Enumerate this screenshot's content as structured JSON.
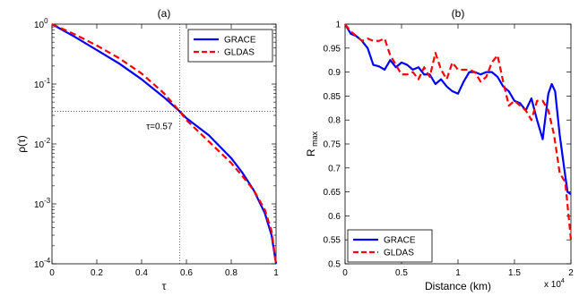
{
  "chart_data": [
    {
      "type": "line",
      "title": "(a)",
      "xlabel": "τ",
      "ylabel": "ρ(τ)",
      "xlim": [
        0,
        1
      ],
      "ylim": [
        0.0001,
        1
      ],
      "y_scale": "log",
      "xticks": [
        "0",
        "0.2",
        "0.4",
        "0.6",
        "0.8",
        "1"
      ],
      "yticks": [
        {
          "base": "10",
          "exp": "0"
        },
        {
          "base": "10",
          "exp": "-1"
        },
        {
          "base": "10",
          "exp": "-2"
        },
        {
          "base": "10",
          "exp": "-3"
        },
        {
          "base": "10",
          "exp": "-4"
        }
      ],
      "legend_position": "top-right",
      "annotation": "τ=0.57",
      "reference_lines": {
        "x": 0.57,
        "y": 0.035
      },
      "series": [
        {
          "name": "GRACE",
          "color": "#0000ff",
          "style": "solid",
          "x": [
            0,
            0.1,
            0.2,
            0.3,
            0.4,
            0.5,
            0.57,
            0.6,
            0.7,
            0.8,
            0.85,
            0.9,
            0.95,
            0.98,
            1.0
          ],
          "y": [
            1.0,
            0.62,
            0.37,
            0.22,
            0.12,
            0.06,
            0.035,
            0.027,
            0.014,
            0.0058,
            0.0033,
            0.0017,
            0.0007,
            0.0003,
            0.0001
          ]
        },
        {
          "name": "GLDAS",
          "color": "#ff0000",
          "style": "dashed",
          "x": [
            0,
            0.1,
            0.2,
            0.3,
            0.4,
            0.5,
            0.57,
            0.6,
            0.7,
            0.8,
            0.85,
            0.9,
            0.95,
            0.98,
            1.0
          ],
          "y": [
            1.0,
            0.68,
            0.44,
            0.27,
            0.15,
            0.07,
            0.035,
            0.025,
            0.011,
            0.0048,
            0.0029,
            0.0017,
            0.0008,
            0.00035,
            0.0001
          ]
        }
      ]
    },
    {
      "type": "line",
      "title": "(b)",
      "xlabel": "Distance (km)",
      "ylabel": "R",
      "ylabel_sub": "max",
      "xlim": [
        0,
        20000
      ],
      "ylim": [
        0.5,
        1
      ],
      "xticks": [
        "0",
        "0.5",
        "1",
        "1.5",
        "2"
      ],
      "yticks": [
        "1",
        "0.95",
        "0.9",
        "0.85",
        "0.8",
        "0.75",
        "0.7",
        "0.65",
        "0.6",
        "0.55",
        "0.5"
      ],
      "x_multiplier": {
        "base": "x 10",
        "exp": "4"
      },
      "legend_position": "bottom-left",
      "series": [
        {
          "name": "GRACE",
          "color": "#0000ff",
          "style": "solid",
          "x": [
            0,
            500,
            1000,
            1500,
            2000,
            2500,
            3000,
            3500,
            4000,
            4500,
            5000,
            5500,
            6000,
            6500,
            7000,
            7500,
            8000,
            8500,
            9000,
            9500,
            10000,
            10500,
            11000,
            11500,
            12000,
            12500,
            13000,
            13500,
            14000,
            14500,
            15000,
            15500,
            16000,
            16500,
            17000,
            17500,
            18000,
            18300,
            18600,
            19000,
            19400,
            19700,
            20000
          ],
          "y": [
            1.0,
            0.98,
            0.975,
            0.965,
            0.95,
            0.915,
            0.912,
            0.905,
            0.925,
            0.91,
            0.92,
            0.915,
            0.905,
            0.91,
            0.895,
            0.895,
            0.875,
            0.885,
            0.87,
            0.86,
            0.855,
            0.88,
            0.9,
            0.9,
            0.895,
            0.9,
            0.9,
            0.89,
            0.87,
            0.86,
            0.84,
            0.835,
            0.82,
            0.845,
            0.8,
            0.76,
            0.855,
            0.875,
            0.86,
            0.77,
            0.7,
            0.65,
            0.645
          ]
        },
        {
          "name": "GLDAS",
          "color": "#ff0000",
          "style": "dashed",
          "x": [
            0,
            500,
            1000,
            1500,
            2000,
            2500,
            3000,
            3500,
            4000,
            4500,
            5000,
            5500,
            6000,
            6500,
            7000,
            7500,
            8000,
            8500,
            9000,
            9500,
            10000,
            10500,
            11000,
            11500,
            12000,
            12500,
            13000,
            13500,
            14000,
            14500,
            15000,
            15500,
            16000,
            16500,
            17000,
            17500,
            18000,
            18500,
            19000,
            19500,
            20000
          ],
          "y": [
            1.0,
            0.985,
            0.975,
            0.965,
            0.97,
            0.965,
            0.965,
            0.97,
            0.935,
            0.915,
            0.895,
            0.895,
            0.9,
            0.885,
            0.91,
            0.89,
            0.94,
            0.905,
            0.885,
            0.92,
            0.905,
            0.905,
            0.905,
            0.9,
            0.88,
            0.89,
            0.92,
            0.935,
            0.88,
            0.83,
            0.84,
            0.83,
            0.82,
            0.8,
            0.84,
            0.84,
            0.82,
            0.77,
            0.69,
            0.67,
            0.55
          ]
        }
      ]
    }
  ]
}
